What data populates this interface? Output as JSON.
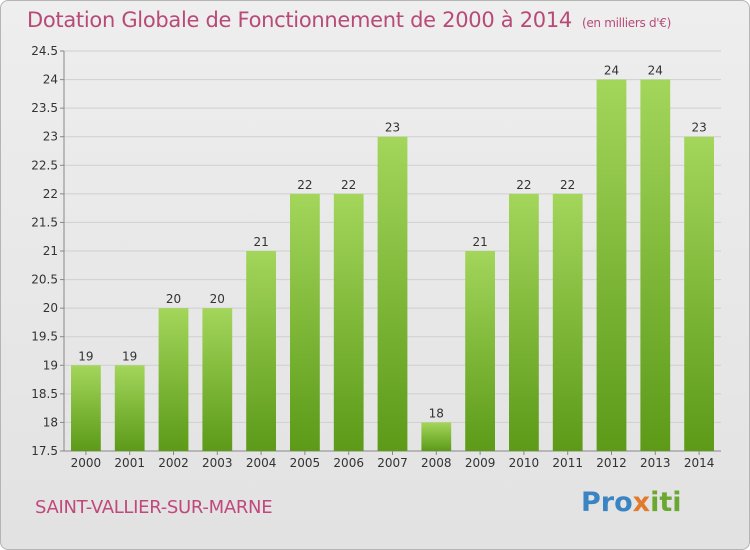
{
  "title": "Dotation Globale de Fonctionnement de 2000 à 2014",
  "subtitle": "(en milliers d'€)",
  "place": "SAINT-VALLIER-SUR-MARNE",
  "logo": {
    "p1": "Pro",
    "p2": "x",
    "p3": "iti"
  },
  "colors": {
    "bar_top": "#9fd357",
    "bar_bottom": "#5e9c1a",
    "title": "#b84a78"
  },
  "chart_data": {
    "type": "bar",
    "categories": [
      "2000",
      "2001",
      "2002",
      "2003",
      "2004",
      "2005",
      "2006",
      "2007",
      "2008",
      "2009",
      "2010",
      "2011",
      "2012",
      "2013",
      "2014"
    ],
    "values": [
      19,
      19,
      20,
      20,
      21,
      22,
      22,
      23,
      18,
      21,
      22,
      22,
      24,
      24,
      23
    ],
    "data_labels": [
      "19",
      "19",
      "20",
      "20",
      "21",
      "22",
      "22",
      "23",
      "18",
      "21",
      "22",
      "22",
      "24",
      "24",
      "23"
    ],
    "ylim": [
      17.5,
      24.5
    ],
    "yticks": [
      "17.5",
      "18",
      "18.5",
      "19",
      "19.5",
      "20",
      "20.5",
      "21",
      "21.5",
      "22",
      "22.5",
      "23",
      "23.5",
      "24",
      "24.5"
    ],
    "grid": true,
    "xlabel": "",
    "ylabel": ""
  }
}
